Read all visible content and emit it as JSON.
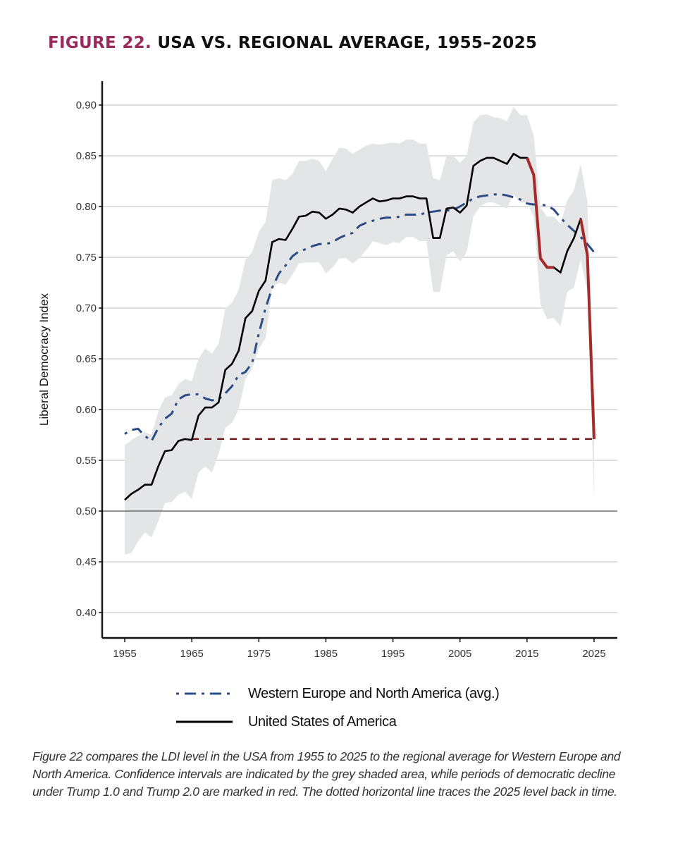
{
  "title": {
    "figure_label": "FIGURE 22.",
    "text": "USA VS. REGIONAL AVERAGE, 1955–2025",
    "label_color": "#9a2a5e"
  },
  "chart_data": {
    "type": "line",
    "title": "USA VS. REGIONAL AVERAGE, 1955–2025",
    "xlabel": "",
    "ylabel": "Liberal Democracy Index",
    "xlim": [
      1955,
      2025
    ],
    "ylim": [
      0.4,
      0.9
    ],
    "x_ticks": [
      "1955",
      "1965",
      "1975",
      "1985",
      "1995",
      "2005",
      "2015",
      "2025"
    ],
    "y_ticks": [
      "0.40",
      "0.45",
      "0.50",
      "0.55",
      "0.60",
      "0.65",
      "0.70",
      "0.75",
      "0.80",
      "0.85",
      "0.90"
    ],
    "grid": true,
    "reference_line_y": 0.5,
    "legend_position": "bottom",
    "x": [
      1955,
      1956,
      1957,
      1958,
      1959,
      1960,
      1961,
      1962,
      1963,
      1964,
      1965,
      1966,
      1967,
      1968,
      1969,
      1970,
      1971,
      1972,
      1973,
      1974,
      1975,
      1976,
      1977,
      1978,
      1979,
      1980,
      1981,
      1982,
      1983,
      1984,
      1985,
      1986,
      1987,
      1988,
      1989,
      1990,
      1991,
      1992,
      1993,
      1994,
      1995,
      1996,
      1997,
      1998,
      1999,
      2000,
      2001,
      2002,
      2003,
      2004,
      2005,
      2006,
      2007,
      2008,
      2009,
      2010,
      2011,
      2012,
      2013,
      2014,
      2015,
      2016,
      2017,
      2018,
      2019,
      2020,
      2021,
      2022,
      2023,
      2024,
      2025
    ],
    "series": [
      {
        "name": "Western Europe and North America (avg.)",
        "style": "dash-dot",
        "color": "#2b4c85",
        "values": [
          0.576,
          0.58,
          0.581,
          0.574,
          0.569,
          0.582,
          0.591,
          0.596,
          0.61,
          0.614,
          0.615,
          0.615,
          0.611,
          0.609,
          0.61,
          0.616,
          0.623,
          0.634,
          0.637,
          0.646,
          0.675,
          0.7,
          0.72,
          0.734,
          0.742,
          0.751,
          0.756,
          0.758,
          0.761,
          0.763,
          0.763,
          0.765,
          0.769,
          0.772,
          0.774,
          0.781,
          0.784,
          0.786,
          0.788,
          0.789,
          0.789,
          0.79,
          0.792,
          0.792,
          0.792,
          0.794,
          0.795,
          0.796,
          0.796,
          0.797,
          0.8,
          0.804,
          0.808,
          0.81,
          0.811,
          0.812,
          0.812,
          0.811,
          0.809,
          0.807,
          0.803,
          0.802,
          0.802,
          0.801,
          0.797,
          0.789,
          0.782,
          0.776,
          0.77,
          0.763,
          0.755
        ]
      },
      {
        "name": "United States of America",
        "style": "solid",
        "color": "#000000",
        "values": [
          0.511,
          0.517,
          0.521,
          0.526,
          0.526,
          0.544,
          0.559,
          0.56,
          0.569,
          0.571,
          0.57,
          0.594,
          0.602,
          0.602,
          0.607,
          0.639,
          0.645,
          0.658,
          0.69,
          0.697,
          0.717,
          0.727,
          0.765,
          0.768,
          0.767,
          0.778,
          0.79,
          0.791,
          0.795,
          0.794,
          0.788,
          0.792,
          0.798,
          0.797,
          0.794,
          0.8,
          0.804,
          0.808,
          0.805,
          0.806,
          0.808,
          0.808,
          0.81,
          0.81,
          0.808,
          0.808,
          0.769,
          0.769,
          0.798,
          0.799,
          0.794,
          0.801,
          0.84,
          0.845,
          0.848,
          0.848,
          0.845,
          0.842,
          0.852,
          0.848,
          0.848,
          0.831,
          0.749,
          0.74,
          0.74,
          0.735,
          0.756,
          0.769,
          0.788,
          0.752,
          0.571
        ]
      }
    ],
    "confidence_interval": {
      "name": "Confidence interval (USA)",
      "color": "#e4e5e7",
      "lower": [
        0.457,
        0.459,
        0.47,
        0.479,
        0.474,
        0.49,
        0.508,
        0.509,
        0.516,
        0.519,
        0.512,
        0.538,
        0.544,
        0.538,
        0.556,
        0.582,
        0.587,
        0.6,
        0.63,
        0.64,
        0.66,
        0.67,
        0.72,
        0.725,
        0.723,
        0.733,
        0.744,
        0.745,
        0.745,
        0.745,
        0.734,
        0.74,
        0.749,
        0.749,
        0.744,
        0.749,
        0.757,
        0.766,
        0.764,
        0.762,
        0.765,
        0.764,
        0.77,
        0.77,
        0.766,
        0.766,
        0.716,
        0.716,
        0.752,
        0.756,
        0.746,
        0.755,
        0.79,
        0.8,
        0.804,
        0.804,
        0.801,
        0.798,
        0.812,
        0.804,
        0.804,
        0.79,
        0.704,
        0.689,
        0.69,
        0.682,
        0.716,
        0.72,
        0.748,
        0.716,
        0.513
      ],
      "upper": [
        0.565,
        0.57,
        0.574,
        0.578,
        0.575,
        0.598,
        0.612,
        0.614,
        0.625,
        0.63,
        0.628,
        0.65,
        0.66,
        0.655,
        0.665,
        0.7,
        0.705,
        0.718,
        0.748,
        0.755,
        0.775,
        0.785,
        0.826,
        0.828,
        0.826,
        0.832,
        0.845,
        0.845,
        0.847,
        0.845,
        0.835,
        0.847,
        0.858,
        0.857,
        0.852,
        0.856,
        0.86,
        0.862,
        0.861,
        0.862,
        0.863,
        0.862,
        0.866,
        0.866,
        0.862,
        0.862,
        0.828,
        0.826,
        0.85,
        0.85,
        0.843,
        0.85,
        0.883,
        0.89,
        0.891,
        0.888,
        0.887,
        0.884,
        0.898,
        0.89,
        0.89,
        0.87,
        0.799,
        0.79,
        0.79,
        0.783,
        0.806,
        0.816,
        0.842,
        0.805,
        0.575
      ]
    },
    "highlight_segments": [
      {
        "label": "Trump 1.0",
        "from": 2015,
        "to": 2019,
        "color": "#a52a2a"
      },
      {
        "label": "Trump 2.0",
        "from": 2023,
        "to": 2025,
        "color": "#a52a2a"
      }
    ],
    "horizontal_trace": {
      "label": "2025 level traced back",
      "y": 0.571,
      "from": 1965,
      "to": 2025,
      "style": "dashed",
      "color": "#6e1f1f"
    }
  },
  "legend": [
    {
      "label": "Western Europe and North America (avg.)",
      "style": "dash-dot",
      "color": "#2b4c85"
    },
    {
      "label": "United States of America",
      "style": "solid",
      "color": "#000000"
    }
  ],
  "caption": "Figure 22 compares the LDI level in the USA from 1955 to 2025 to the regional average for Western Europe and North America. Confidence intervals are indicated by the grey shaded area, while periods of democratic decline under Trump 1.0 and Trump 2.0 are marked in red. The dotted horizontal line traces the 2025 level back in time."
}
